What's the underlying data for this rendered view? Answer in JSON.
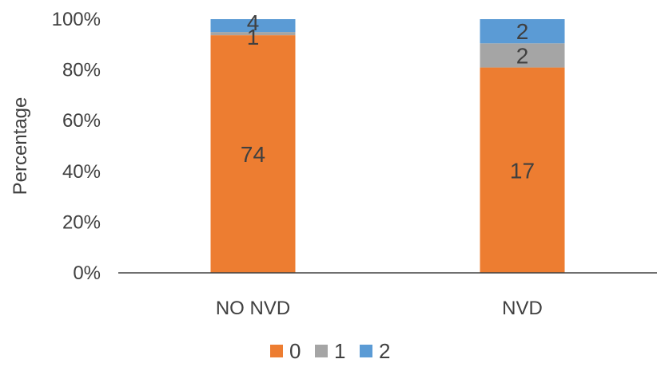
{
  "chart_data": {
    "type": "bar",
    "stacked": true,
    "percent_stacked": true,
    "categories": [
      "NO NVD",
      "NVD"
    ],
    "series": [
      {
        "name": "0",
        "values": [
          74,
          17
        ],
        "color": "#ed7d31"
      },
      {
        "name": "1",
        "values": [
          1,
          2
        ],
        "color": "#a5a5a5"
      },
      {
        "name": "2",
        "values": [
          4,
          2
        ],
        "color": "#5b9bd5"
      }
    ],
    "ylabel": "Percentage",
    "ylim": [
      0,
      100
    ],
    "yticks": [
      "0%",
      "20%",
      "40%",
      "60%",
      "80%",
      "100%"
    ],
    "grid": false,
    "legend_position": "bottom"
  }
}
